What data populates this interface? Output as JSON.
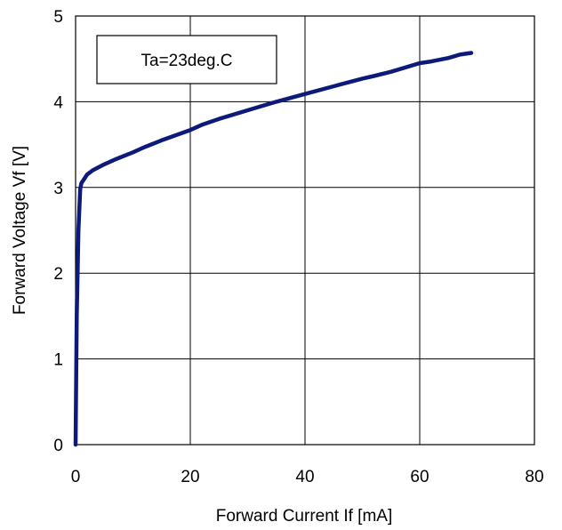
{
  "chart_data": {
    "type": "line",
    "title": "",
    "xlabel": "Forward Current If [mA]",
    "ylabel": "Forward Voltage Vf [V]",
    "xlim": [
      0,
      80
    ],
    "ylim": [
      0,
      5
    ],
    "xticks": [
      "0",
      "20",
      "40",
      "60",
      "80"
    ],
    "yticks": [
      "0",
      "1",
      "2",
      "3",
      "4",
      "5"
    ],
    "grid": true,
    "annotation": "Ta=23deg.C",
    "line_color": "#0d1a7a",
    "series": [
      {
        "x": [
          0,
          0.2,
          0.5,
          0.8,
          1.0,
          1.5,
          2,
          3,
          5,
          7,
          10,
          12,
          15,
          20,
          22,
          25,
          30,
          35,
          40,
          45,
          50,
          52,
          55,
          60,
          62,
          65,
          67,
          69
        ],
        "y": [
          0.0,
          1.5,
          2.5,
          2.98,
          3.05,
          3.1,
          3.15,
          3.2,
          3.27,
          3.33,
          3.41,
          3.47,
          3.55,
          3.67,
          3.73,
          3.8,
          3.9,
          4.0,
          4.09,
          4.18,
          4.27,
          4.3,
          4.35,
          4.45,
          4.47,
          4.51,
          4.55,
          4.57
        ]
      }
    ]
  }
}
